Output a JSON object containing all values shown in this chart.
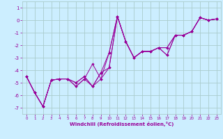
{
  "xlabel": "Windchill (Refroidissement éolien,°C)",
  "background_color": "#cceeff",
  "grid_color": "#aacccc",
  "line_color": "#990099",
  "xlim": [
    -0.5,
    23.5
  ],
  "ylim": [
    -7.5,
    1.5
  ],
  "yticks": [
    1,
    0,
    -1,
    -2,
    -3,
    -4,
    -5,
    -6,
    -7
  ],
  "xticks": [
    0,
    1,
    2,
    3,
    4,
    5,
    6,
    7,
    8,
    9,
    10,
    11,
    12,
    13,
    14,
    15,
    16,
    17,
    18,
    19,
    20,
    21,
    22,
    23
  ],
  "series": [
    [
      0,
      1,
      2,
      3,
      4,
      5,
      6,
      7,
      8,
      9,
      10,
      11,
      12,
      13,
      14,
      15,
      16,
      17,
      18,
      19,
      20,
      21,
      22,
      23
    ],
    [
      -4.5,
      -5.8,
      -6.9,
      -4.8,
      -4.7,
      -4.7,
      -5.3,
      -4.7,
      -3.5,
      -4.7,
      -2.6,
      0.3,
      -1.7,
      -3.0,
      -2.5,
      -2.5,
      -2.2,
      -2.2,
      -1.2,
      -1.2,
      -0.9,
      0.2,
      0.0,
      0.1
    ],
    [
      -4.5,
      -5.8,
      -6.9,
      -4.8,
      -4.7,
      -4.7,
      -5.0,
      -4.5,
      -5.3,
      -4.2,
      -2.6,
      0.3,
      -1.7,
      -3.0,
      -2.5,
      -2.5,
      -2.2,
      -2.2,
      -1.2,
      -1.2,
      -0.9,
      0.2,
      0.0,
      0.1
    ],
    [
      -4.5,
      -5.8,
      -6.9,
      -4.8,
      -4.7,
      -4.7,
      -5.0,
      -4.5,
      -5.3,
      -4.2,
      -3.8,
      0.3,
      -1.7,
      -3.0,
      -2.5,
      -2.5,
      -2.2,
      -2.8,
      -1.2,
      -1.2,
      -0.9,
      0.2,
      0.0,
      0.1
    ],
    [
      -4.5,
      -5.8,
      -6.9,
      -4.8,
      -4.7,
      -4.7,
      -5.3,
      -4.7,
      -5.3,
      -4.7,
      -3.8,
      0.3,
      -1.7,
      -3.0,
      -2.5,
      -2.5,
      -2.2,
      -2.8,
      -1.2,
      -1.2,
      -0.9,
      0.2,
      0.0,
      0.1
    ]
  ]
}
